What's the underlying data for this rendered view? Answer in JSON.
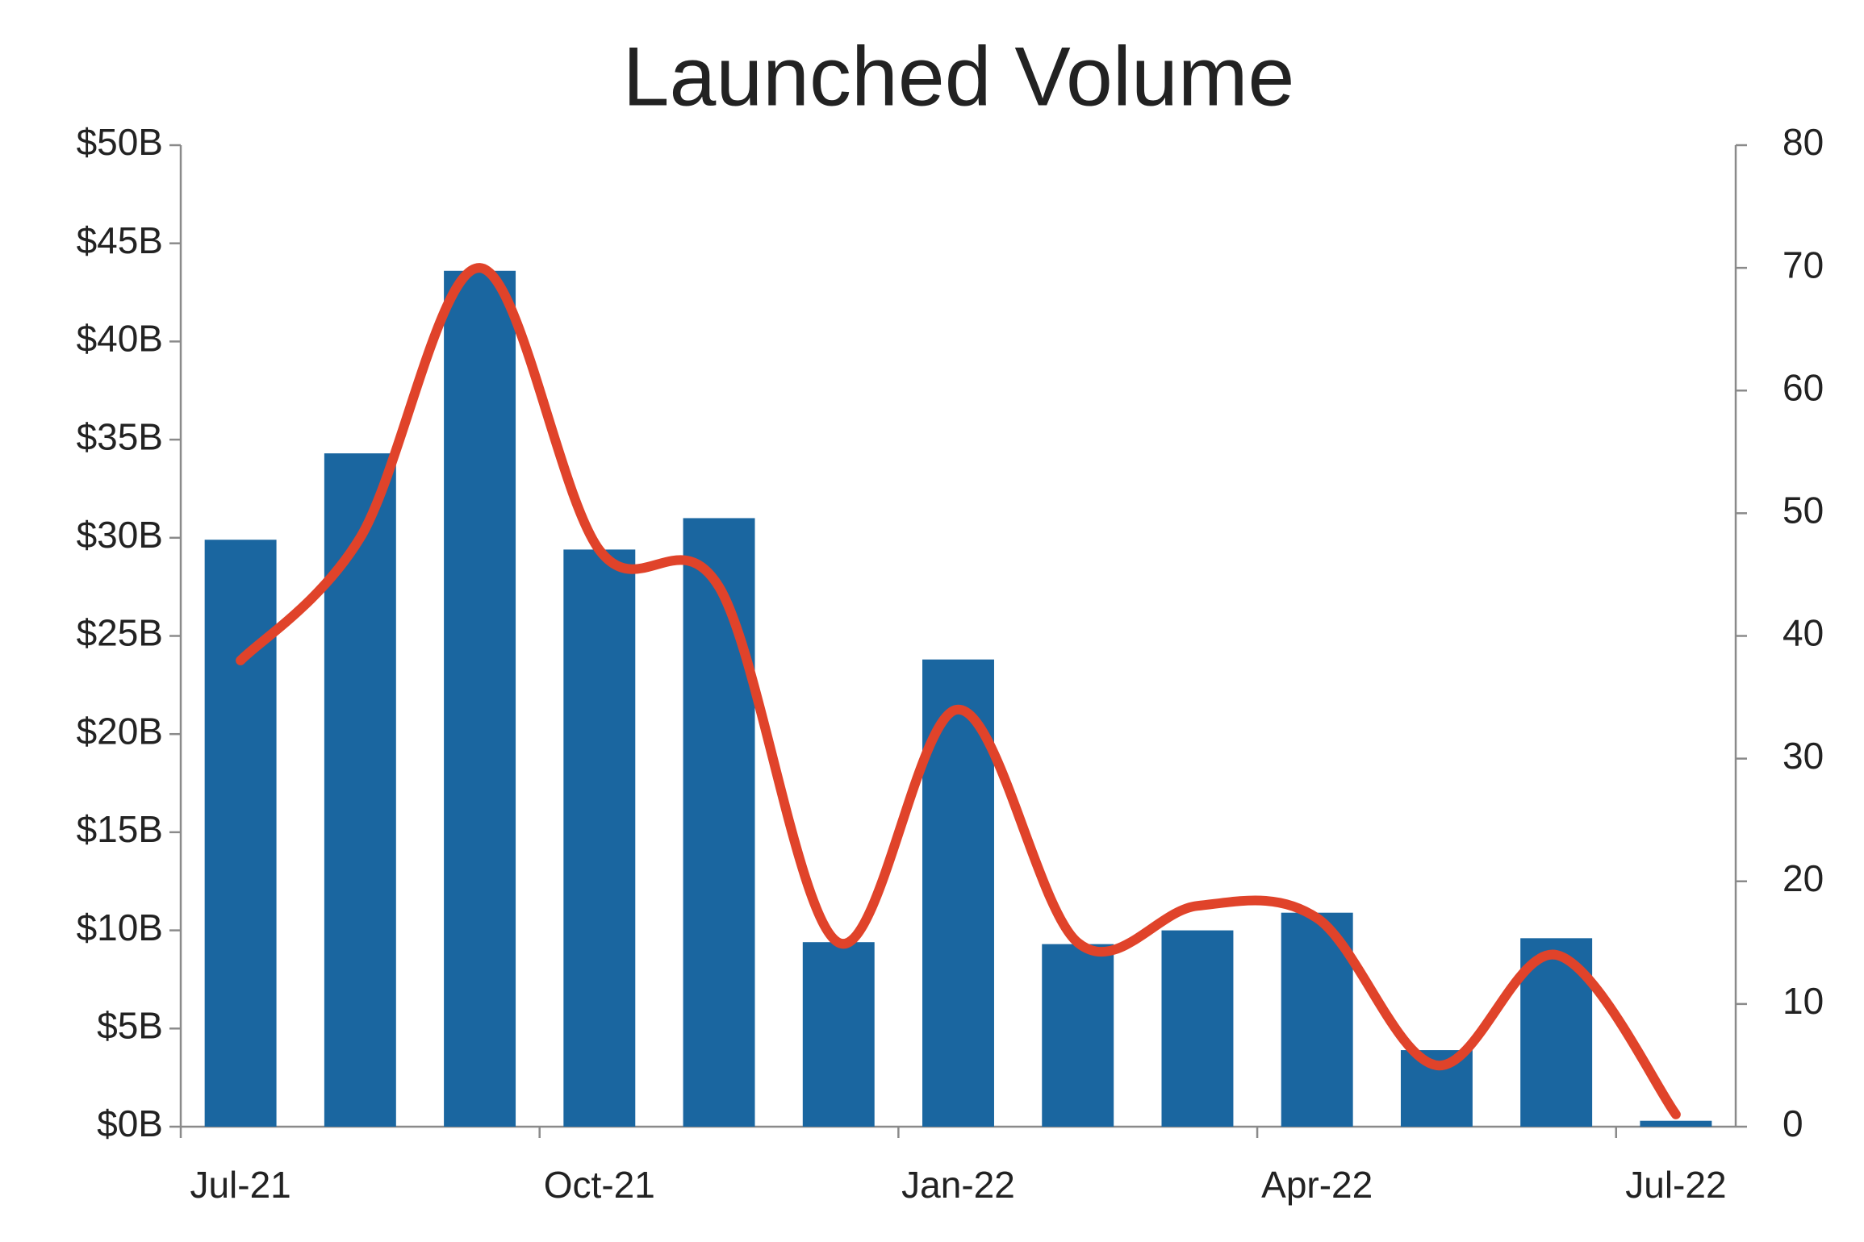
{
  "chart_data": {
    "type": "bar-line",
    "title": "Launched Volume",
    "categories": [
      "Jul-21",
      null,
      null,
      "Oct-21",
      null,
      null,
      "Jan-22",
      null,
      null,
      "Apr-22",
      null,
      null,
      "Jul-22"
    ],
    "series": [
      {
        "type": "bar",
        "color": "#1a66a0",
        "values": [
          29.9,
          34.3,
          43.6,
          29.4,
          31.0,
          9.4,
          23.8,
          9.3,
          10.0,
          10.9,
          3.9,
          9.6,
          0.3
        ]
      },
      {
        "type": "line",
        "color": "#e0432a",
        "axis": "y2",
        "smooth": true,
        "values": [
          38,
          48,
          70,
          47,
          44,
          15,
          34,
          15,
          18,
          17,
          5,
          14,
          1
        ]
      }
    ],
    "ylim": [
      0,
      50
    ],
    "yticks": [
      {
        "value": 0,
        "label": "$0B"
      },
      {
        "value": 5,
        "label": "$5B"
      },
      {
        "value": 10,
        "label": "$10B"
      },
      {
        "value": 15,
        "label": "$15B"
      },
      {
        "value": 20,
        "label": "$20B"
      },
      {
        "value": 25,
        "label": "$25B"
      },
      {
        "value": 30,
        "label": "$30B"
      },
      {
        "value": 35,
        "label": "$35B"
      },
      {
        "value": 40,
        "label": "$40B"
      },
      {
        "value": 45,
        "label": "$45B"
      },
      {
        "value": 50,
        "label": "$50B"
      }
    ],
    "y2lim": [
      0,
      80
    ],
    "y2ticks": [
      0,
      10,
      20,
      30,
      40,
      50,
      60,
      70,
      80
    ],
    "grid": false
  }
}
